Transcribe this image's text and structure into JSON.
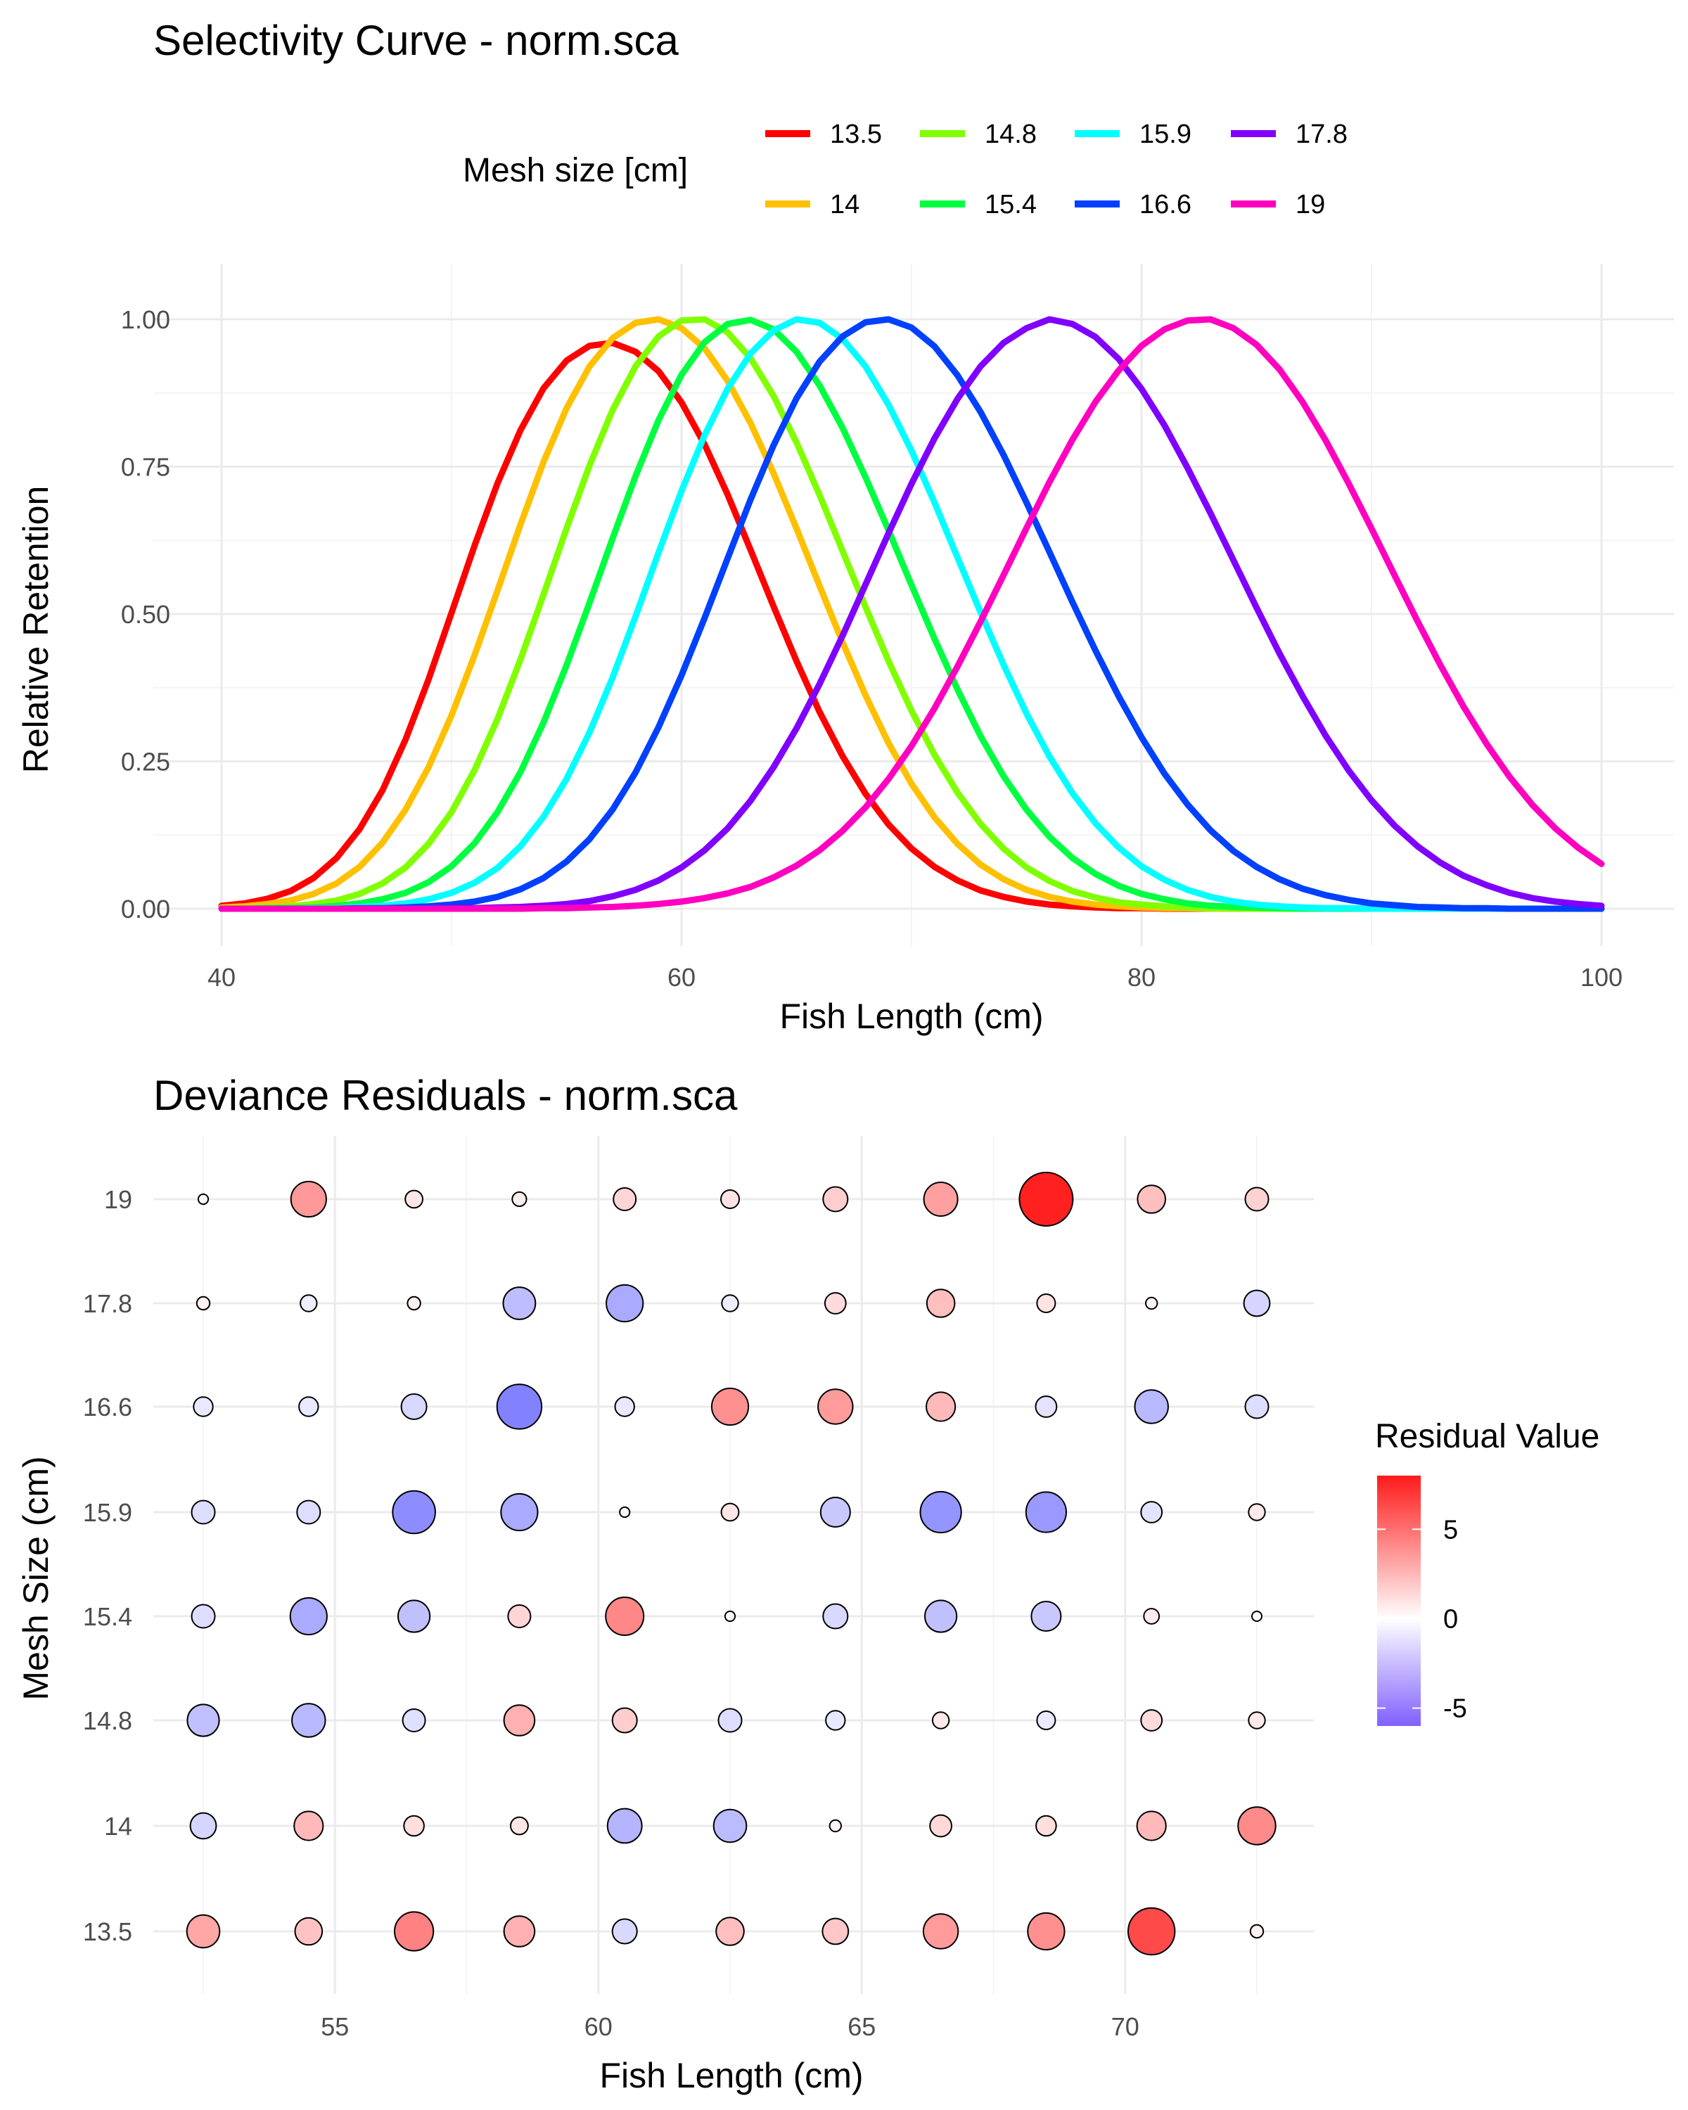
{
  "chart_data": [
    {
      "type": "line",
      "title": "Selectivity Curve - norm.sca",
      "xlabel": "Fish Length (cm)",
      "ylabel": "Relative Retention",
      "xlim": [
        40,
        100
      ],
      "ylim": [
        0,
        1
      ],
      "x_ticks": [
        "40",
        "60",
        "80",
        "100"
      ],
      "y_ticks": [
        "0.00",
        "0.25",
        "0.50",
        "0.75",
        "1.00"
      ],
      "legend_title": "Mesh size [cm]",
      "x": [
        40,
        41,
        42,
        43,
        44,
        45,
        46,
        47,
        48,
        49,
        50,
        51,
        52,
        53,
        54,
        55,
        56,
        57,
        58,
        59,
        60,
        61,
        62,
        63,
        64,
        65,
        66,
        67,
        68,
        69,
        70,
        71,
        72,
        73,
        74,
        75,
        76,
        77,
        78,
        79,
        80,
        81,
        82,
        83,
        84,
        85,
        86,
        87,
        88,
        89,
        90,
        91,
        92,
        93,
        94,
        95,
        96,
        97,
        98,
        99,
        100
      ],
      "series": [
        {
          "name": "13.5",
          "color": "#ff0000",
          "values": [
            0.005,
            0.009,
            0.017,
            0.03,
            0.052,
            0.086,
            0.135,
            0.201,
            0.287,
            0.389,
            0.502,
            0.616,
            0.722,
            0.812,
            0.883,
            0.93,
            0.955,
            0.96,
            0.945,
            0.912,
            0.859,
            0.788,
            0.703,
            0.609,
            0.513,
            0.42,
            0.334,
            0.259,
            0.195,
            0.143,
            0.102,
            0.071,
            0.048,
            0.031,
            0.02,
            0.012,
            0.007,
            0.004,
            0.002,
            0.001,
            0.001,
            0,
            0,
            0,
            0,
            0,
            0,
            0,
            0,
            0,
            0,
            0,
            0,
            0,
            0,
            0,
            0,
            0,
            0,
            0,
            0
          ]
        },
        {
          "name": "14",
          "color": "#ffc000",
          "values": [
            0.002,
            0.004,
            0.008,
            0.014,
            0.025,
            0.043,
            0.071,
            0.112,
            0.168,
            0.24,
            0.328,
            0.43,
            0.54,
            0.652,
            0.758,
            0.849,
            0.92,
            0.968,
            0.994,
            1.0,
            0.985,
            0.951,
            0.896,
            0.824,
            0.739,
            0.645,
            0.548,
            0.452,
            0.362,
            0.281,
            0.212,
            0.155,
            0.11,
            0.075,
            0.05,
            0.032,
            0.02,
            0.012,
            0.007,
            0.004,
            0.002,
            0.001,
            0.001,
            0,
            0,
            0,
            0,
            0,
            0,
            0,
            0,
            0,
            0,
            0,
            0,
            0,
            0,
            0,
            0,
            0,
            0
          ]
        },
        {
          "name": "14.8",
          "color": "#80ff00",
          "values": [
            0.001,
            0.001,
            0.002,
            0.004,
            0.008,
            0.014,
            0.025,
            0.043,
            0.07,
            0.11,
            0.164,
            0.235,
            0.322,
            0.423,
            0.533,
            0.645,
            0.752,
            0.846,
            0.92,
            0.971,
            0.998,
            1.0,
            0.978,
            0.934,
            0.87,
            0.791,
            0.702,
            0.607,
            0.512,
            0.42,
            0.336,
            0.261,
            0.197,
            0.144,
            0.102,
            0.07,
            0.047,
            0.03,
            0.019,
            0.011,
            0.007,
            0.004,
            0.002,
            0.001,
            0.001,
            0,
            0,
            0,
            0,
            0,
            0,
            0,
            0,
            0,
            0,
            0,
            0,
            0,
            0,
            0,
            0
          ]
        },
        {
          "name": "15.4",
          "color": "#00ff40",
          "values": [
            0,
            0,
            0.001,
            0.001,
            0.002,
            0.005,
            0.009,
            0.016,
            0.027,
            0.045,
            0.072,
            0.111,
            0.164,
            0.232,
            0.316,
            0.413,
            0.519,
            0.628,
            0.734,
            0.829,
            0.906,
            0.961,
            0.992,
            0.999,
            0.983,
            0.945,
            0.888,
            0.816,
            0.732,
            0.642,
            0.549,
            0.458,
            0.372,
            0.293,
            0.225,
            0.168,
            0.122,
            0.086,
            0.059,
            0.039,
            0.025,
            0.016,
            0.009,
            0.005,
            0.003,
            0.002,
            0.001,
            0,
            0,
            0,
            0,
            0,
            0,
            0,
            0,
            0,
            0,
            0,
            0,
            0,
            0
          ]
        },
        {
          "name": "15.9",
          "color": "#00ffff",
          "values": [
            0,
            0,
            0,
            0,
            0.001,
            0.001,
            0.003,
            0.005,
            0.009,
            0.016,
            0.027,
            0.044,
            0.069,
            0.106,
            0.156,
            0.22,
            0.299,
            0.392,
            0.496,
            0.604,
            0.709,
            0.803,
            0.882,
            0.942,
            0.981,
            1.0,
            0.994,
            0.967,
            0.92,
            0.855,
            0.777,
            0.689,
            0.596,
            0.503,
            0.414,
            0.331,
            0.258,
            0.196,
            0.145,
            0.104,
            0.072,
            0.049,
            0.032,
            0.02,
            0.012,
            0.007,
            0.004,
            0.002,
            0.001,
            0.001,
            0,
            0,
            0,
            0,
            0,
            0,
            0,
            0,
            0,
            0,
            0
          ]
        },
        {
          "name": "16.6",
          "color": "#0040ff",
          "values": [
            0,
            0,
            0,
            0,
            0,
            0,
            0.001,
            0.001,
            0.002,
            0.004,
            0.007,
            0.012,
            0.02,
            0.033,
            0.052,
            0.08,
            0.118,
            0.168,
            0.231,
            0.308,
            0.396,
            0.493,
            0.594,
            0.694,
            0.786,
            0.866,
            0.928,
            0.971,
            0.995,
            1.0,
            0.986,
            0.954,
            0.905,
            0.843,
            0.77,
            0.689,
            0.605,
            0.52,
            0.438,
            0.361,
            0.291,
            0.229,
            0.177,
            0.133,
            0.098,
            0.071,
            0.05,
            0.034,
            0.023,
            0.015,
            0.009,
            0.006,
            0.003,
            0.002,
            0.001,
            0.001,
            0,
            0,
            0,
            0,
            0
          ]
        },
        {
          "name": "17.8",
          "color": "#8000ff",
          "values": [
            0,
            0,
            0,
            0,
            0,
            0,
            0,
            0,
            0,
            0,
            0.001,
            0.001,
            0.002,
            0.003,
            0.005,
            0.008,
            0.013,
            0.021,
            0.032,
            0.048,
            0.07,
            0.099,
            0.136,
            0.183,
            0.24,
            0.306,
            0.381,
            0.463,
            0.55,
            0.637,
            0.721,
            0.798,
            0.865,
            0.92,
            0.96,
            0.985,
            1.0,
            0.992,
            0.97,
            0.933,
            0.882,
            0.82,
            0.748,
            0.671,
            0.591,
            0.511,
            0.433,
            0.361,
            0.294,
            0.235,
            0.184,
            0.141,
            0.106,
            0.078,
            0.056,
            0.04,
            0.027,
            0.018,
            0.012,
            0.008,
            0.005
          ]
        },
        {
          "name": "19",
          "color": "#ff00c0",
          "values": [
            0,
            0,
            0,
            0,
            0,
            0,
            0,
            0,
            0,
            0,
            0,
            0,
            0,
            0,
            0.001,
            0.001,
            0.002,
            0.003,
            0.005,
            0.008,
            0.012,
            0.018,
            0.026,
            0.037,
            0.053,
            0.073,
            0.099,
            0.132,
            0.172,
            0.22,
            0.276,
            0.34,
            0.411,
            0.487,
            0.566,
            0.646,
            0.724,
            0.796,
            0.86,
            0.913,
            0.955,
            0.983,
            0.998,
            1.0,
            0.985,
            0.957,
            0.915,
            0.86,
            0.795,
            0.722,
            0.645,
            0.566,
            0.488,
            0.413,
            0.343,
            0.28,
            0.224,
            0.176,
            0.136,
            0.103,
            0.076
          ]
        }
      ]
    },
    {
      "type": "scatter",
      "title": "Deviance Residuals - norm.sca",
      "xlabel": "Fish Length (cm)",
      "ylabel": "Mesh Size (cm)",
      "xlim": [
        51.9,
        73.1
      ],
      "x_ticks": [
        "55",
        "60",
        "65",
        "70"
      ],
      "categories": [
        "13.5",
        "14",
        "14.8",
        "15.4",
        "15.9",
        "16.6",
        "17.8",
        "19"
      ],
      "x": [
        52.5,
        54.5,
        56.5,
        58.5,
        60.5,
        62.5,
        64.5,
        66.5,
        68.5,
        70.5,
        72.5
      ],
      "legend_title": "Residual Value",
      "color_scale": {
        "low": "#8080ff",
        "mid": "#ffffff",
        "high": "#ff2020",
        "min": -6,
        "max": 8,
        "ticks": [
          "-5",
          "0",
          "5"
        ]
      },
      "residuals": {
        "13.5": [
          3.2,
          2.2,
          4.5,
          2.8,
          -1.8,
          2.3,
          2.0,
          3.6,
          4.0,
          6.5,
          0.5
        ],
        "14": [
          -2.0,
          2.5,
          1.2,
          0.9,
          -3.5,
          -3.2,
          0.4,
          1.4,
          1.2,
          2.5,
          4.2
        ],
        "14.8": [
          -3.0,
          -3.3,
          -1.5,
          2.8,
          1.8,
          -1.6,
          -1.1,
          0.8,
          -1.0,
          1.3,
          0.8
        ],
        "15.4": [
          -1.6,
          -4.0,
          -3.0,
          1.5,
          4.3,
          0.3,
          -1.8,
          -3.0,
          -2.6,
          0.7,
          0.2
        ],
        "15.9": [
          -1.6,
          -1.6,
          -5.4,
          -4.0,
          0.3,
          0.9,
          -2.6,
          -5.0,
          -4.8,
          -1.3,
          0.8
        ],
        "16.6": [
          -1.1,
          -1.1,
          -1.9,
          -5.9,
          -1.1,
          4.0,
          3.6,
          2.5,
          -1.3,
          -3.3,
          -1.6
        ],
        "17.8": [
          0.5,
          -0.8,
          0.5,
          -3.1,
          -4.0,
          -0.8,
          1.3,
          2.3,
          1.0,
          0.4,
          -2.0
        ],
        "19": [
          0.3,
          3.7,
          0.9,
          0.6,
          1.5,
          1.0,
          1.8,
          3.4,
          8.5,
          2.3,
          1.6
        ]
      }
    }
  ]
}
